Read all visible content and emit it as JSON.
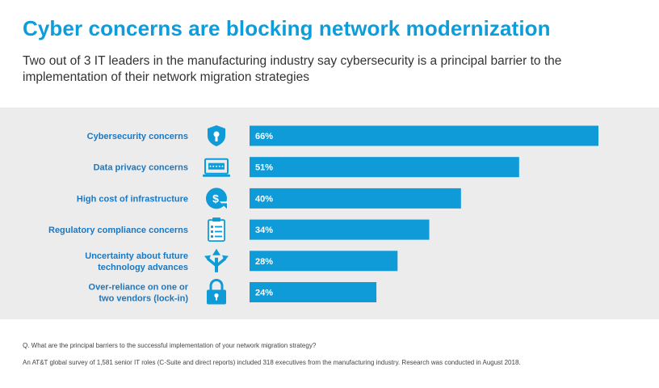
{
  "header": {
    "title": "Cyber concerns are blocking network modernization",
    "subtitle": "Two out of 3 IT leaders in the manufacturing industry say cybersecurity is a principal barrier to the implementation of their network migration strategies"
  },
  "colors": {
    "title": "#0d9ddb",
    "bar": "#0e9bd8",
    "label": "#1878c4",
    "panel": "#ececec",
    "icon": "#0e9bd8"
  },
  "chart_data": {
    "type": "bar",
    "orientation": "horizontal",
    "categories": [
      [
        "Cybersecurity concerns"
      ],
      [
        "Data privacy concerns"
      ],
      [
        "High cost of infrastructure"
      ],
      [
        "Regulatory compliance concerns"
      ],
      [
        "Uncertainty about future",
        "technology advances"
      ],
      [
        "Over-reliance on one or",
        "two vendors (lock-in)"
      ]
    ],
    "values": [
      66,
      51,
      40,
      34,
      28,
      24
    ],
    "value_labels": [
      "66%",
      "51%",
      "40%",
      "34%",
      "28%",
      "24%"
    ],
    "icons": [
      "shield-lock-icon",
      "password-screen-icon",
      "coin-arrow-icon",
      "clipboard-checklist-icon",
      "split-arrows-icon",
      "padlock-icon"
    ],
    "unit": "%",
    "xlim": [
      0,
      66
    ],
    "grid": false,
    "legend": "none"
  },
  "footer": {
    "question": "Q. What are the principal barriers to the successful implementation of your network migration strategy?",
    "source": "An AT&T global survey of 1,581 senior IT roles (C-Suite and direct reports) included 318 executives from the manufacturing industry. Research was conducted in August 2018."
  }
}
